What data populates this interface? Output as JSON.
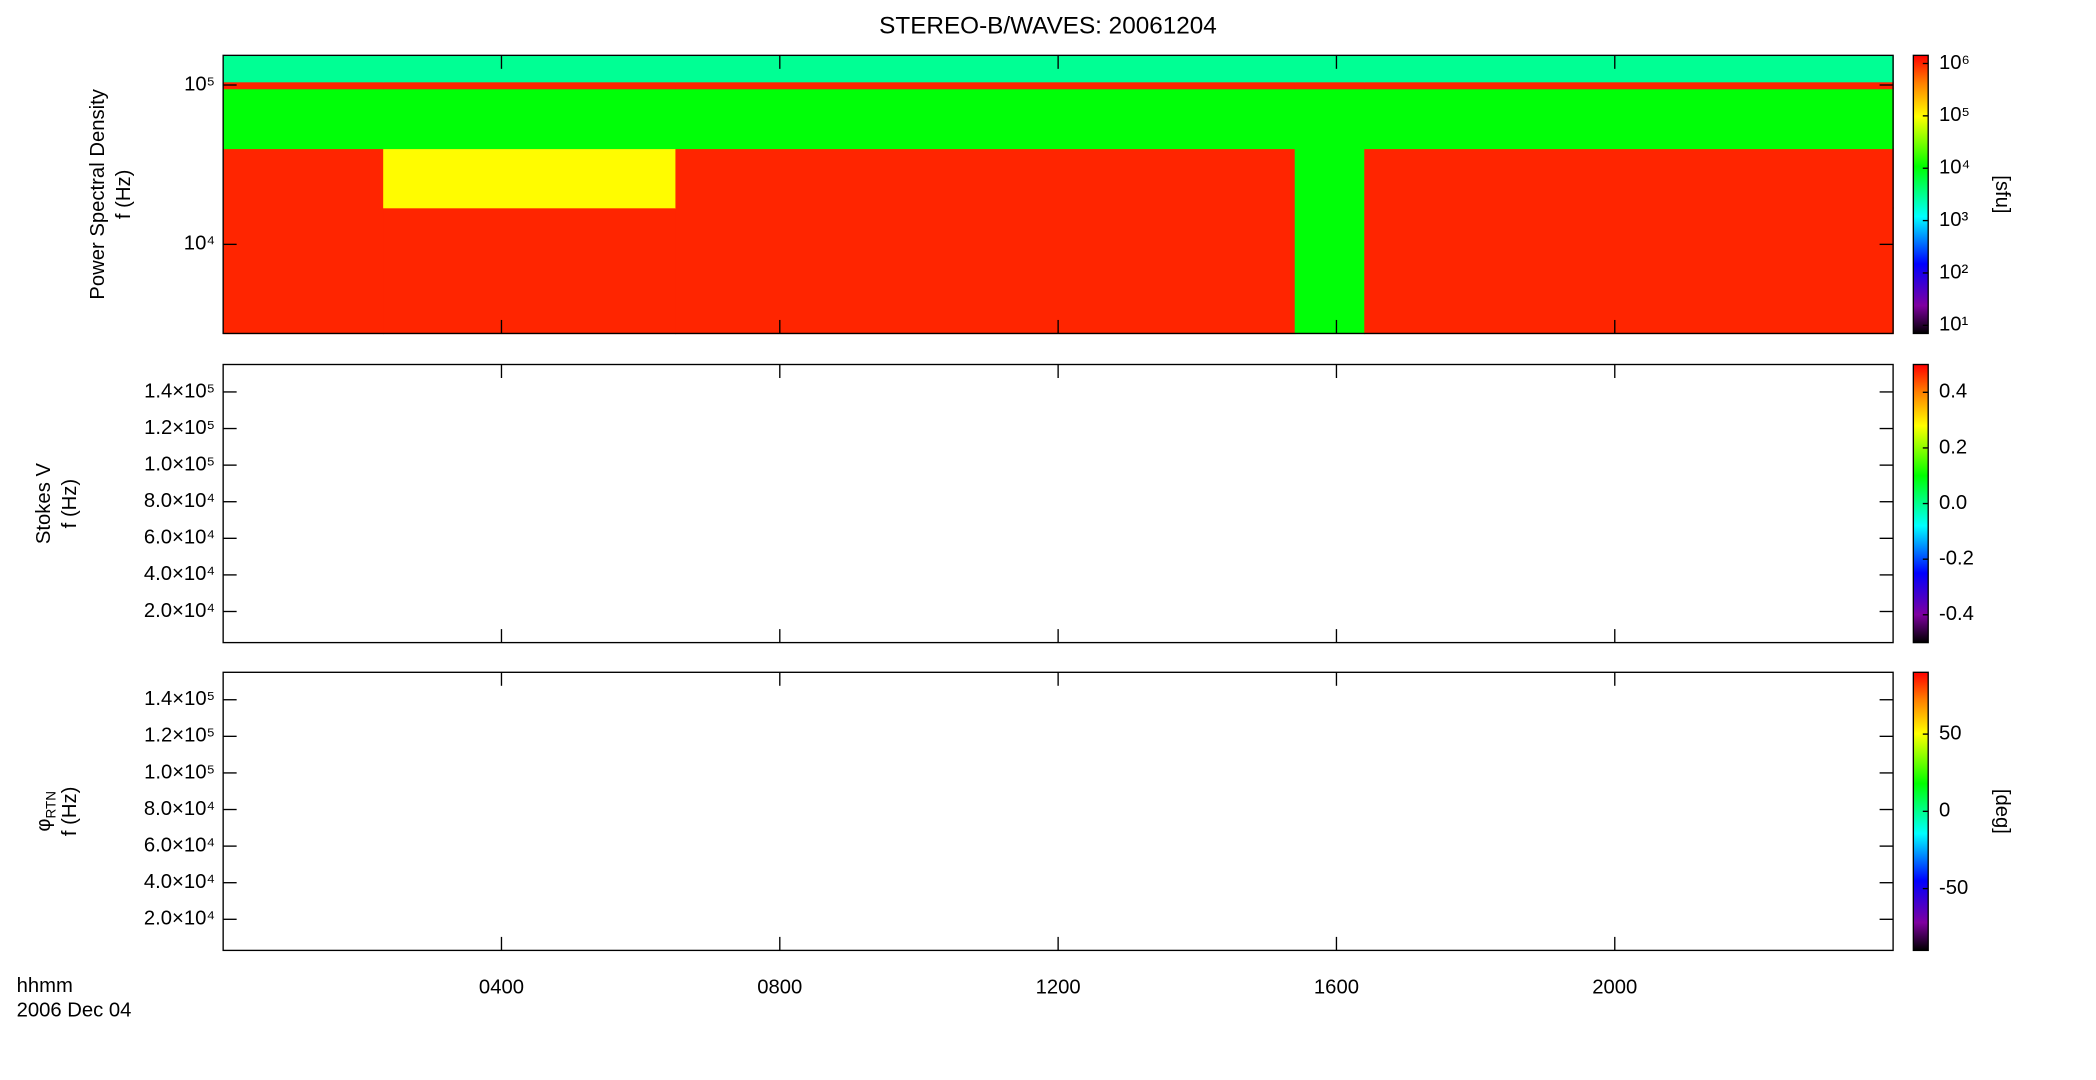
{
  "chart_data": [
    {
      "type": "heatmap",
      "title": "STEREO-B/WAVES: 20061204",
      "ylabel": [
        "Power Spectral Density",
        "f (Hz)"
      ],
      "ylog": true,
      "ylim": [
        2760,
        153500
      ],
      "yticks": [
        {
          "value": 10000,
          "label": "10⁴"
        },
        {
          "value": 100000,
          "label": "10⁵"
        }
      ],
      "x_edges": [
        0,
        2.3,
        6.5,
        15.4,
        16.4,
        24
      ],
      "y_edges": [
        2760,
        17000,
        40000,
        95000,
        105000,
        153500
      ],
      "values": [
        [
          1000000,
          1000000,
          1000000,
          10000,
          1000000
        ],
        [
          1000000,
          100000,
          1000000,
          10000,
          1000000
        ],
        [
          10000,
          10000,
          10000,
          10000,
          10000
        ],
        [
          1000000,
          1000000,
          1000000,
          1000000,
          1000000
        ],
        [
          3000,
          3000,
          3000,
          3000,
          3000
        ]
      ],
      "colorbar": {
        "log": true,
        "lim": [
          7,
          1430000
        ],
        "label": "[sfu]",
        "ticks": [
          {
            "value": 10,
            "label": "10¹"
          },
          {
            "value": 100,
            "label": "10²"
          },
          {
            "value": 1000,
            "label": "10³"
          },
          {
            "value": 10000,
            "label": "10⁴"
          },
          {
            "value": 100000,
            "label": "10⁵"
          },
          {
            "value": 1000000,
            "label": "10⁶"
          }
        ]
      }
    },
    {
      "type": "heatmap",
      "ylabel": [
        "Stokes V",
        "f (Hz)"
      ],
      "ylog": false,
      "ylim": [
        3000,
        155000
      ],
      "yticks": [
        {
          "value": 20000,
          "label": "2.0×10⁴"
        },
        {
          "value": 40000,
          "label": "4.0×10⁴"
        },
        {
          "value": 60000,
          "label": "6.0×10⁴"
        },
        {
          "value": 80000,
          "label": "8.0×10⁴"
        },
        {
          "value": 100000,
          "label": "1.0×10⁵"
        },
        {
          "value": 120000,
          "label": "1.2×10⁵"
        },
        {
          "value": 140000,
          "label": "1.4×10⁵"
        }
      ],
      "colorbar": {
        "log": false,
        "lim": [
          -0.5,
          0.5
        ],
        "ticks": [
          -0.4,
          -0.2,
          {
            "value": 0,
            "label": "0.0"
          },
          0.2,
          0.4
        ]
      }
    },
    {
      "type": "heatmap",
      "ylabel": [
        "φ",
        "RTN",
        "f (Hz)"
      ],
      "ylog": false,
      "ylim": [
        3000,
        155000
      ],
      "yticks": [
        {
          "value": 20000,
          "label": "2.0×10⁴"
        },
        {
          "value": 40000,
          "label": "4.0×10⁴"
        },
        {
          "value": 60000,
          "label": "6.0×10⁴"
        },
        {
          "value": 80000,
          "label": "8.0×10⁴"
        },
        {
          "value": 100000,
          "label": "1.0×10⁵"
        },
        {
          "value": 120000,
          "label": "1.2×10⁵"
        },
        {
          "value": 140000,
          "label": "1.4×10⁵"
        }
      ],
      "colorbar": {
        "log": false,
        "lim": [
          -90,
          90
        ],
        "label": "[deg]",
        "ticks": [
          -50,
          0,
          50
        ]
      },
      "xlabel": [
        "hhmm",
        "2006 Dec 04"
      ],
      "xlim": [
        0,
        24
      ],
      "xticks": [
        {
          "value": 4,
          "label": "0400"
        },
        {
          "value": 8,
          "label": "0800"
        },
        {
          "value": 12,
          "label": "1200"
        },
        {
          "value": 16,
          "label": "1600"
        },
        {
          "value": 20,
          "label": "2000"
        }
      ]
    }
  ]
}
